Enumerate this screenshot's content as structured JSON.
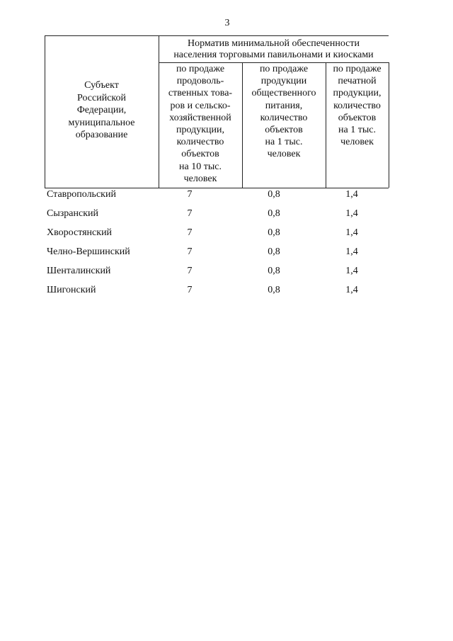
{
  "page_number": "3",
  "table": {
    "group_header": [
      "Норматив минимальной обеспеченности",
      "населения торговыми павильонами и киосками"
    ],
    "first_column_header": [
      "Субъект",
      "Российской",
      "Федерации,",
      "муниципальное",
      "образование"
    ],
    "column_headers": [
      [
        "по продаже",
        "продоволь-",
        "ственных това-",
        "ров и сельско-",
        "хозяйственной",
        "продукции,",
        "количество",
        "объектов",
        "на 10 тыс.",
        "человек"
      ],
      [
        "по продаже",
        "продукции",
        "общественного",
        "питания,",
        "количество",
        "объектов",
        "на 1 тыс.",
        "человек"
      ],
      [
        "по продаже",
        "печатной",
        "продукции,",
        "количество",
        "объектов",
        "на 1 тыс.",
        "человек"
      ]
    ],
    "rows": [
      [
        "Ставропольский",
        "7",
        "0,8",
        "1,4"
      ],
      [
        "Сызранский",
        "7",
        "0,8",
        "1,4"
      ],
      [
        "Хворостянский",
        "7",
        "0,8",
        "1,4"
      ],
      [
        "Челно-Вершинский",
        "7",
        "0,8",
        "1,4"
      ],
      [
        "Шенталинский",
        "7",
        "0,8",
        "1,4"
      ],
      [
        "Шигонский",
        "7",
        "0,8",
        "1,4"
      ]
    ]
  }
}
